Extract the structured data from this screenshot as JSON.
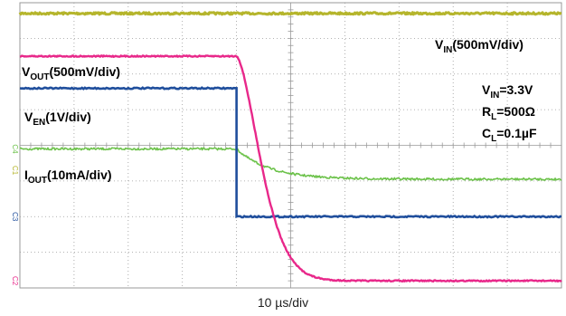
{
  "chart_data": {
    "type": "line",
    "x_unit": "µs",
    "time_base": "10 µs/div",
    "x_divisions": 10,
    "y_divisions": 8,
    "grid": true,
    "colors": {
      "vin": "#b5b52c",
      "vout": "#e8288a",
      "ven": "#1f4e9c",
      "iout": "#6cc24a",
      "grid": "#9a9a9a"
    },
    "channel_markers": [
      "C4",
      "C3",
      "C1",
      "C2"
    ],
    "conditions": {
      "vin": {
        "main": "V",
        "sub": "IN",
        "rest": "=3.3V"
      },
      "rl": {
        "main": "R",
        "sub": "L",
        "rest": "=500Ω"
      },
      "cl": {
        "main": "C",
        "sub": "L",
        "rest": "=0.1µF"
      }
    },
    "traces": {
      "vin": {
        "main": "V",
        "sub": "IN",
        "rest": "(500mV/div)",
        "level_div": 7.7
      },
      "vout": {
        "main": "V",
        "sub": "OUT",
        "rest": "(500mV/div)",
        "high_div": 6.5,
        "low_div": 0.2,
        "fall_start_us": 0,
        "tau_us": 6
      },
      "ven": {
        "main": "V",
        "sub": "EN",
        "rest": "(1V/div)",
        "high_div": 5.6,
        "low_div": 2.0,
        "edge_us": 0
      },
      "iout": {
        "main": "I",
        "sub": "OUT",
        "rest": "(10mA/div)",
        "high_div": 3.9,
        "low_div": 3.05,
        "fall_start_us": 0,
        "tau_us": 6
      }
    },
    "enable_edge_us": 0,
    "t_start_us": -40,
    "t_end_us": 60
  }
}
